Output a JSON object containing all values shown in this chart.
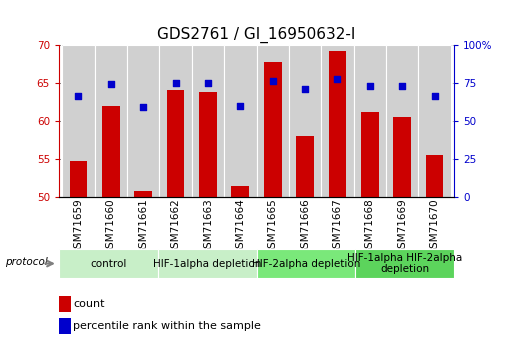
{
  "title": "GDS2761 / GI_16950632-I",
  "samples": [
    "GSM71659",
    "GSM71660",
    "GSM71661",
    "GSM71662",
    "GSM71663",
    "GSM71664",
    "GSM71665",
    "GSM71666",
    "GSM71667",
    "GSM71668",
    "GSM71669",
    "GSM71670"
  ],
  "counts": [
    54.7,
    62.0,
    50.7,
    64.0,
    63.8,
    51.4,
    67.8,
    58.0,
    69.2,
    61.2,
    60.5,
    55.5
  ],
  "percentiles": [
    63.2,
    64.8,
    61.8,
    65.0,
    65.0,
    62.0,
    65.2,
    64.2,
    65.5,
    64.6,
    64.6,
    63.2
  ],
  "bar_color": "#CC0000",
  "dot_color": "#0000CC",
  "left_ylim": [
    50,
    70
  ],
  "left_yticks": [
    50,
    55,
    60,
    65,
    70
  ],
  "right_ylim": [
    0,
    100
  ],
  "right_yticks": [
    0,
    25,
    50,
    75,
    100
  ],
  "protocol_groups": [
    {
      "label": "control",
      "start": 0,
      "end": 2,
      "color": "#c8efc8"
    },
    {
      "label": "HIF-1alpha depletion",
      "start": 3,
      "end": 5,
      "color": "#c8efc8"
    },
    {
      "label": "HIF-2alpha depletion",
      "start": 6,
      "end": 8,
      "color": "#7ae87a"
    },
    {
      "label": "HIF-1alpha HIF-2alpha\ndepletion",
      "start": 9,
      "end": 11,
      "color": "#5cd45c"
    }
  ],
  "legend_count_label": "count",
  "legend_percentile_label": "percentile rank within the sample",
  "protocol_label": "protocol",
  "bg_color": "#ffffff",
  "tick_label_bg": "#d0d0d0",
  "title_fontsize": 11,
  "tick_fontsize": 7.5,
  "legend_fontsize": 8,
  "protocol_fontsize": 7.5
}
